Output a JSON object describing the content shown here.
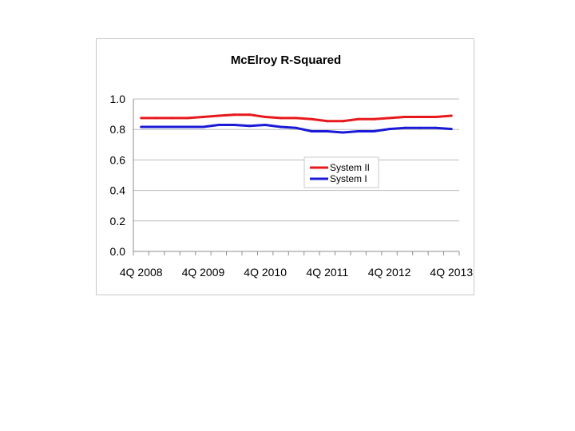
{
  "chart_data": {
    "type": "line",
    "title": "McElroy R-Squared",
    "xlabel": "",
    "ylabel": "",
    "ylim": [
      0,
      1.0
    ],
    "yticks": [
      "0.0",
      "0.2",
      "0.4",
      "0.6",
      "0.8",
      "1.0"
    ],
    "x_tick_labels": [
      "4Q 2008",
      "4Q 2009",
      "4Q 2010",
      "4Q 2011",
      "4Q 2012",
      "4Q 2013"
    ],
    "x": [
      "4Q 2008",
      "1Q 2009",
      "2Q 2009",
      "3Q 2009",
      "4Q 2009",
      "1Q 2010",
      "2Q 2010",
      "3Q 2010",
      "4Q 2010",
      "1Q 2011",
      "2Q 2011",
      "3Q 2011",
      "4Q 2011",
      "1Q 2012",
      "2Q 2012",
      "3Q 2012",
      "4Q 2012",
      "1Q 2013",
      "2Q 2013",
      "3Q 2013",
      "4Q 2013"
    ],
    "grid": "horizontal",
    "legend_position": "center-right",
    "series": [
      {
        "name": "System II",
        "color": "#e8191b",
        "values": [
          0.875,
          0.875,
          0.875,
          0.875,
          0.882,
          0.89,
          0.897,
          0.897,
          0.882,
          0.875,
          0.875,
          0.868,
          0.855,
          0.855,
          0.868,
          0.868,
          0.875,
          0.882,
          0.882,
          0.882,
          0.89
        ]
      },
      {
        "name": "System I",
        "color": "#1a1ad8",
        "values": [
          0.817,
          0.817,
          0.817,
          0.817,
          0.817,
          0.83,
          0.83,
          0.823,
          0.83,
          0.817,
          0.81,
          0.788,
          0.788,
          0.78,
          0.788,
          0.788,
          0.803,
          0.81,
          0.81,
          0.81,
          0.803
        ]
      }
    ]
  }
}
